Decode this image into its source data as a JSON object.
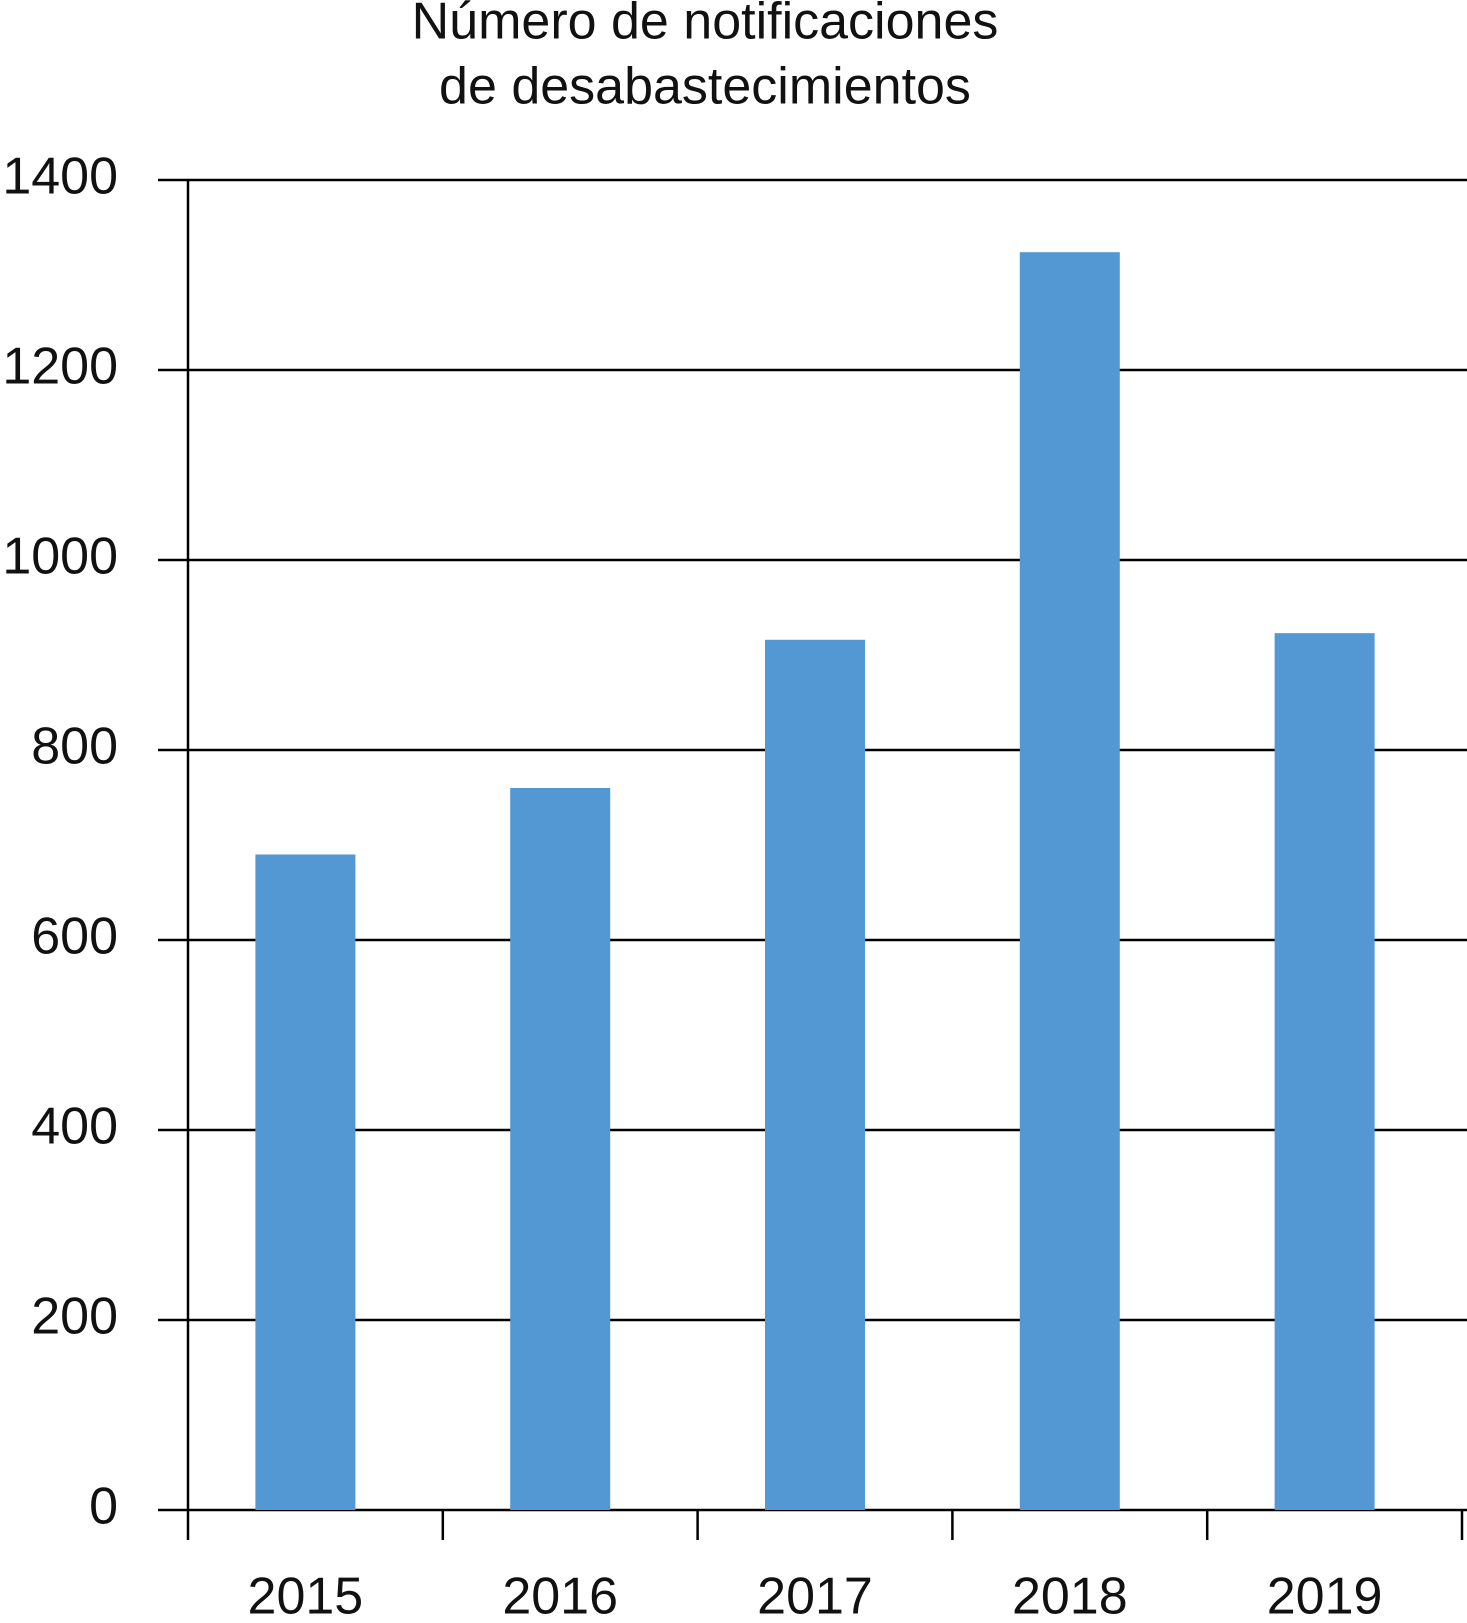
{
  "chart_data": {
    "type": "bar",
    "title": [
      "Número de notificaciones",
      "de desabastecimientos"
    ],
    "categories": [
      "2015",
      "2016",
      "2017",
      "2018",
      "2019"
    ],
    "values": [
      690,
      760,
      916,
      1324,
      923
    ],
    "color": "#5398d3",
    "ylim": [
      0,
      1400
    ],
    "yticks": [
      0,
      200,
      400,
      600,
      800,
      1000,
      1200,
      1400
    ],
    "grid": true
  }
}
